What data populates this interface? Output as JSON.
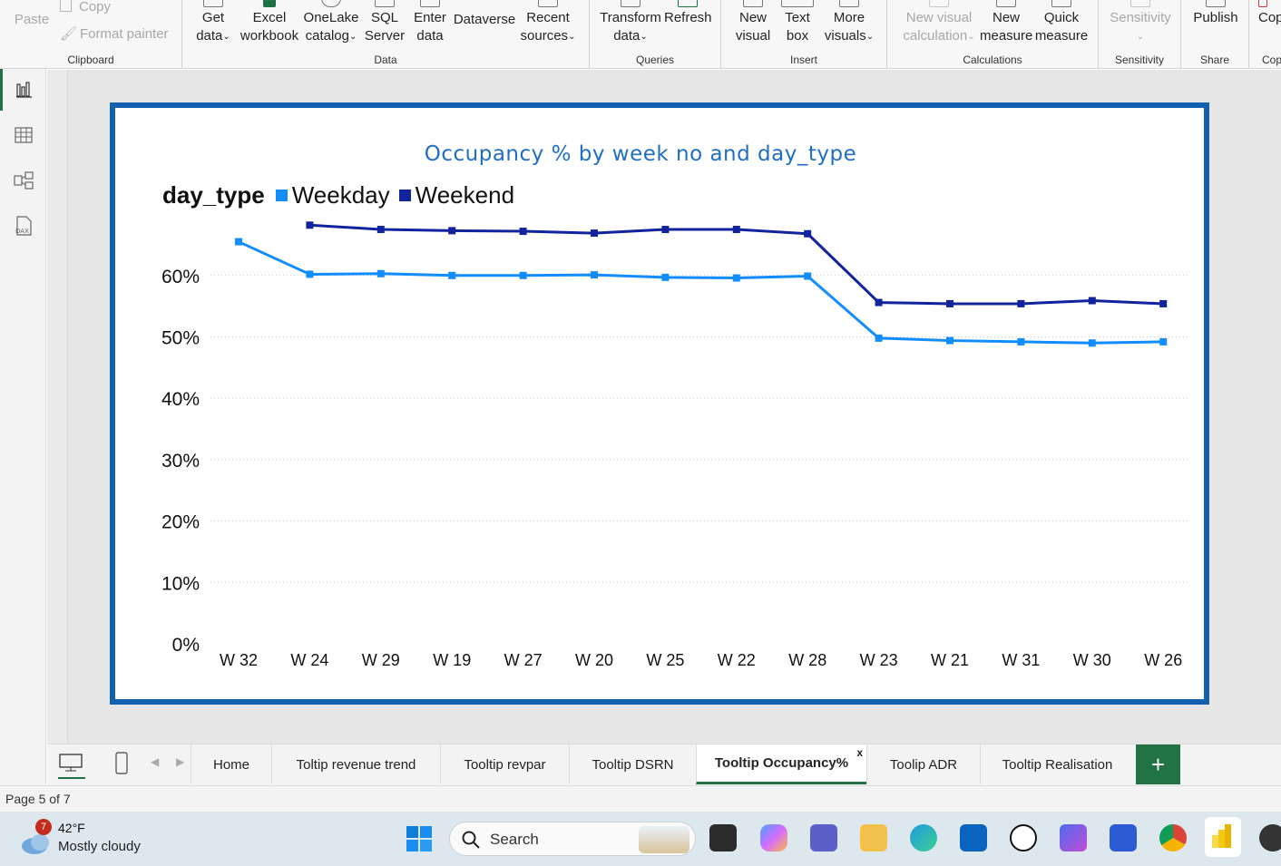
{
  "ribbon": {
    "clipboard": {
      "paste": "Paste",
      "copy": "Copy",
      "format_painter": "Format painter",
      "label": "Clipboard"
    },
    "data": {
      "get_data": [
        "Get",
        "data"
      ],
      "excel": [
        "Excel",
        "workbook"
      ],
      "onelake": [
        "OneLake",
        "catalog"
      ],
      "sql": [
        "SQL",
        "Server"
      ],
      "enter": [
        "Enter",
        "data"
      ],
      "dataverse": "Dataverse",
      "recent": [
        "Recent",
        "sources"
      ],
      "label": "Data"
    },
    "queries": {
      "transform": [
        "Transform",
        "data"
      ],
      "refresh": "Refresh",
      "label": "Queries"
    },
    "insert": {
      "new_visual": [
        "New",
        "visual"
      ],
      "text_box": [
        "Text",
        "box"
      ],
      "more_visuals": [
        "More",
        "visuals"
      ],
      "label": "Insert"
    },
    "calculations": {
      "new_visual_calc": [
        "New visual",
        "calculation"
      ],
      "new_measure": [
        "New",
        "measure"
      ],
      "quick_measure": [
        "Quick",
        "measure"
      ],
      "label": "Calculations"
    },
    "sensitivity": {
      "button": "Sensitivity",
      "label": "Sensitivity"
    },
    "share": {
      "publish": "Publish",
      "label": "Share"
    },
    "copilot": {
      "button": "Cop",
      "label": "Cop"
    }
  },
  "chart_data": {
    "type": "line",
    "title": "Occupancy % by week no and day_type",
    "legend_title": "day_type",
    "legend_position": "top-left",
    "categories": [
      "W 32",
      "W 24",
      "W 29",
      "W 19",
      "W 27",
      "W 20",
      "W 25",
      "W 22",
      "W 28",
      "W 23",
      "W 21",
      "W 31",
      "W 30",
      "W 26"
    ],
    "series": [
      {
        "name": "Weekday",
        "color": "#118dff",
        "values": [
          65.5,
          60.2,
          60.3,
          60.0,
          60.0,
          60.1,
          59.7,
          59.6,
          59.9,
          49.8,
          49.4,
          49.2,
          49.0,
          49.2
        ]
      },
      {
        "name": "Weekend",
        "color": "#12239e",
        "values": [
          null,
          68.2,
          67.5,
          67.3,
          67.2,
          66.9,
          67.5,
          67.5,
          66.8,
          55.6,
          55.4,
          55.4,
          55.9,
          55.4
        ]
      }
    ],
    "yticks": [
      "0%",
      "10%",
      "20%",
      "30%",
      "40%",
      "50%",
      "60%"
    ],
    "ylim": [
      0,
      70
    ],
    "grid": true
  },
  "page_tabs": [
    "Home",
    "Toltip revenue trend",
    "Tooltip revpar",
    "Tooltip DSRN",
    "Tooltip Occupancy%",
    "Toolip ADR",
    "Tooltip Realisation"
  ],
  "active_tab_close": "x",
  "add_tab": "+",
  "status": {
    "page_info": "Page 5 of 7"
  },
  "taskbar": {
    "notification_count": "7",
    "temperature": "42°F",
    "condition": "Mostly cloudy",
    "search_placeholder": "Search"
  }
}
